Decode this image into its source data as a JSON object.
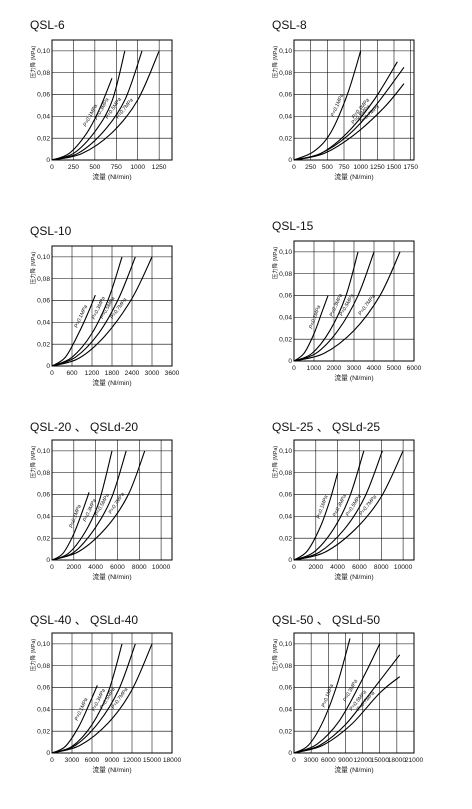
{
  "chart_data": [
    {
      "type": "line",
      "title": "QSL-6",
      "xlabel": "流量 (Nl/min)",
      "ylabel": "压力降 (MPa)",
      "xlim": [
        0,
        1400
      ],
      "ylim": [
        0,
        0.11
      ],
      "xticks": [
        0,
        250,
        500,
        750,
        1000,
        1250
      ],
      "yticks": [
        0,
        0.02,
        0.04,
        0.06,
        0.08,
        0.1
      ],
      "yticklabels": [
        "0",
        "0,02",
        "0,04",
        "0,06",
        "0,08",
        "0,10"
      ],
      "series": [
        {
          "name": "P=0.1MPa",
          "x": [
            0,
            200,
            400,
            550,
            700
          ],
          "y": [
            0,
            0.006,
            0.024,
            0.046,
            0.075
          ]
        },
        {
          "name": "P=0.3MPa",
          "x": [
            0,
            250,
            500,
            700,
            850
          ],
          "y": [
            0,
            0.006,
            0.026,
            0.054,
            0.1
          ]
        },
        {
          "name": "P=0.5MPa",
          "x": [
            0,
            300,
            600,
            850,
            1050
          ],
          "y": [
            0,
            0.006,
            0.026,
            0.055,
            0.1
          ]
        },
        {
          "name": "P=0.7MPa",
          "x": [
            0,
            350,
            700,
            1000,
            1250
          ],
          "y": [
            0,
            0.006,
            0.025,
            0.055,
            0.1
          ]
        }
      ]
    },
    {
      "type": "line",
      "title": "QSL-8",
      "xlabel": "流量 (Nl/min)",
      "ylabel": "压力降 (MPa)",
      "xlim": [
        0,
        1800
      ],
      "ylim": [
        0,
        0.11
      ],
      "xticks": [
        0,
        250,
        500,
        750,
        1000,
        1250,
        1500,
        1750
      ],
      "yticks": [
        0,
        0.02,
        0.04,
        0.06,
        0.08,
        0.1
      ],
      "yticklabels": [
        "0",
        "0,02",
        "0,04",
        "0,06",
        "0,08",
        "0,10"
      ],
      "series": [
        {
          "name": "P=0.1MPa",
          "x": [
            0,
            300,
            550,
            800,
            1000
          ],
          "y": [
            0,
            0.008,
            0.025,
            0.06,
            0.1
          ]
        },
        {
          "name": "P=0.3MPa",
          "x": [
            0,
            400,
            800,
            1200,
            1550
          ],
          "y": [
            0,
            0.006,
            0.025,
            0.055,
            0.09
          ]
        },
        {
          "name": "P=0.5MPa",
          "x": [
            0,
            400,
            800,
            1200,
            1650
          ],
          "y": [
            0,
            0.006,
            0.022,
            0.048,
            0.085
          ]
        },
        {
          "name": "P=0.7MPa",
          "x": [
            0,
            450,
            900,
            1350,
            1650
          ],
          "y": [
            0,
            0.006,
            0.023,
            0.048,
            0.07
          ]
        }
      ]
    },
    {
      "type": "line",
      "title": "QSL-10",
      "xlabel": "流量 (Nl/min)",
      "ylabel": "压力降 (MPa)",
      "xlim": [
        0,
        3600
      ],
      "ylim": [
        0,
        0.11
      ],
      "xticks": [
        0,
        600,
        1200,
        1800,
        2400,
        3000,
        3600
      ],
      "yticks": [
        0,
        0.02,
        0.04,
        0.06,
        0.08,
        0.1
      ],
      "yticklabels": [
        "0",
        "0,02",
        "0,04",
        "0,06",
        "0,08",
        "0,10"
      ],
      "series": [
        {
          "name": "P=0.1MPa",
          "x": [
            0,
            400,
            800,
            1100,
            1300
          ],
          "y": [
            0,
            0.008,
            0.03,
            0.05,
            0.065
          ]
        },
        {
          "name": "P=0.3MPa",
          "x": [
            0,
            600,
            1200,
            1700,
            2100
          ],
          "y": [
            0,
            0.008,
            0.03,
            0.062,
            0.1
          ]
        },
        {
          "name": "P=0.5MPa",
          "x": [
            0,
            700,
            1400,
            2000,
            2500
          ],
          "y": [
            0,
            0.008,
            0.03,
            0.062,
            0.1
          ]
        },
        {
          "name": "P=0.7MPa",
          "x": [
            0,
            800,
            1600,
            2400,
            3000
          ],
          "y": [
            0,
            0.007,
            0.028,
            0.062,
            0.1
          ]
        }
      ]
    },
    {
      "type": "line",
      "title": "QSL-15",
      "xlabel": "流量 (Nl/min)",
      "ylabel": "压力降 (MPa)",
      "xlim": [
        0,
        6000
      ],
      "ylim": [
        0,
        0.11
      ],
      "xticks": [
        0,
        1000,
        2000,
        3000,
        4000,
        5000,
        6000
      ],
      "yticks": [
        0,
        0.02,
        0.04,
        0.06,
        0.08,
        0.1
      ],
      "yticklabels": [
        "0",
        "0,02",
        "0,04",
        "0,06",
        "0,08",
        "0,10"
      ],
      "series": [
        {
          "name": "P=0.1MPa",
          "x": [
            0,
            500,
            1000,
            1400,
            1700
          ],
          "y": [
            0,
            0.007,
            0.025,
            0.045,
            0.06
          ]
        },
        {
          "name": "P=0.3MPa",
          "x": [
            0,
            900,
            1800,
            2600,
            3200
          ],
          "y": [
            0,
            0.007,
            0.028,
            0.06,
            0.1
          ]
        },
        {
          "name": "P=0.5MPa",
          "x": [
            0,
            1100,
            2200,
            3200,
            4000
          ],
          "y": [
            0,
            0.007,
            0.028,
            0.06,
            0.1
          ]
        },
        {
          "name": "P=0.7MPa",
          "x": [
            0,
            1500,
            3000,
            4300,
            5300
          ],
          "y": [
            0,
            0.007,
            0.028,
            0.06,
            0.1
          ]
        }
      ]
    },
    {
      "type": "line",
      "title": "QSL-20 、 QSLd-20",
      "xlabel": "流量 (Nl/min)",
      "ylabel": "压力降 (MPa)",
      "xlim": [
        0,
        11000
      ],
      "ylim": [
        0,
        0.11
      ],
      "xticks": [
        0,
        2000,
        4000,
        6000,
        8000,
        10000
      ],
      "yticks": [
        0,
        0.02,
        0.04,
        0.06,
        0.08,
        0.1
      ],
      "yticklabels": [
        "0",
        "0,02",
        "0,04",
        "0,06",
        "0,08",
        "0,10"
      ],
      "series": [
        {
          "name": "P=0.1MPa",
          "x": [
            0,
            1000,
            2000,
            2800,
            3400
          ],
          "y": [
            0,
            0.006,
            0.024,
            0.045,
            0.062
          ]
        },
        {
          "name": "P=0.3MPa",
          "x": [
            0,
            1500,
            3000,
            4300,
            5500
          ],
          "y": [
            0,
            0.006,
            0.025,
            0.053,
            0.1
          ]
        },
        {
          "name": "P=0.5MPa",
          "x": [
            0,
            2000,
            4000,
            5500,
            6800
          ],
          "y": [
            0,
            0.007,
            0.03,
            0.058,
            0.1
          ]
        },
        {
          "name": "P=0.7MPa",
          "x": [
            0,
            2500,
            5000,
            7000,
            8500
          ],
          "y": [
            0,
            0.008,
            0.03,
            0.06,
            0.1
          ]
        }
      ]
    },
    {
      "type": "line",
      "title": "QSL-25 、 QSLd-25",
      "xlabel": "流量 (Nl/min)",
      "ylabel": "压力降 (MPa)",
      "xlim": [
        0,
        11000
      ],
      "ylim": [
        0,
        0.11
      ],
      "xticks": [
        0,
        2000,
        4000,
        6000,
        8000,
        10000
      ],
      "yticks": [
        0,
        0.02,
        0.04,
        0.06,
        0.08,
        0.1
      ],
      "yticklabels": [
        "0",
        "0,02",
        "0,04",
        "0,06",
        "0,08",
        "0,10"
      ],
      "series": [
        {
          "name": "P=0.1MPa",
          "x": [
            0,
            1200,
            2400,
            3300,
            4000
          ],
          "y": [
            0,
            0.008,
            0.03,
            0.055,
            0.08
          ]
        },
        {
          "name": "P=0.3MPa",
          "x": [
            0,
            1800,
            3600,
            5100,
            6400
          ],
          "y": [
            0,
            0.007,
            0.028,
            0.058,
            0.1
          ]
        },
        {
          "name": "P=0.5MPa",
          "x": [
            0,
            2300,
            4600,
            6500,
            8100
          ],
          "y": [
            0,
            0.007,
            0.028,
            0.058,
            0.1
          ]
        },
        {
          "name": "P=0.7MPa",
          "x": [
            0,
            2800,
            5600,
            8000,
            10000
          ],
          "y": [
            0,
            0.007,
            0.028,
            0.058,
            0.1
          ]
        }
      ]
    },
    {
      "type": "line",
      "title": "QSL-40 、 QSLd-40",
      "xlabel": "流量 (Nl/min)",
      "ylabel": "压力降 (MPa)",
      "xlim": [
        0,
        18000
      ],
      "ylim": [
        0,
        0.11
      ],
      "xticks": [
        0,
        3000,
        6000,
        9000,
        12000,
        15000,
        18000
      ],
      "yticks": [
        0,
        0.02,
        0.04,
        0.06,
        0.08,
        0.1
      ],
      "yticklabels": [
        "0",
        "0,02",
        "0,04",
        "0,06",
        "0,08",
        "0,10"
      ],
      "series": [
        {
          "name": "P=0.1MPa",
          "x": [
            0,
            2000,
            4000,
            5600,
            6800
          ],
          "y": [
            0,
            0.006,
            0.024,
            0.045,
            0.062
          ]
        },
        {
          "name": "P=0.3MPa",
          "x": [
            0,
            3000,
            6000,
            8500,
            10500
          ],
          "y": [
            0,
            0.006,
            0.026,
            0.057,
            0.1
          ]
        },
        {
          "name": "P=0.5MPa",
          "x": [
            0,
            3500,
            7000,
            10000,
            12500
          ],
          "y": [
            0,
            0.007,
            0.028,
            0.058,
            0.1
          ]
        },
        {
          "name": "P=0.7MPa",
          "x": [
            0,
            4200,
            8500,
            12000,
            15000
          ],
          "y": [
            0,
            0.007,
            0.028,
            0.058,
            0.1
          ]
        }
      ]
    },
    {
      "type": "line",
      "title": "QSL-50 、 QSLd-50",
      "xlabel": "流量 (Nl/min)",
      "ylabel": "压力降 (MPa)",
      "xlim": [
        0,
        21000
      ],
      "ylim": [
        0,
        0.11
      ],
      "xticks": [
        0,
        3000,
        6000,
        9000,
        12000,
        15000,
        18000,
        21000
      ],
      "yticks": [
        0,
        0.02,
        0.04,
        0.06,
        0.08,
        0.1
      ],
      "yticklabels": [
        "0",
        "0,02",
        "0,04",
        "0,06",
        "0,08",
        "0,10"
      ],
      "series": [
        {
          "name": "P=0.1MPa",
          "x": [
            0,
            2500,
            5000,
            7500,
            9800
          ],
          "y": [
            0,
            0.007,
            0.028,
            0.062,
            0.105
          ]
        },
        {
          "name": "P=0.3MPa",
          "x": [
            0,
            4000,
            8000,
            12000,
            15000
          ],
          "y": [
            0,
            0.008,
            0.03,
            0.068,
            0.1
          ]
        },
        {
          "name": "P=0.5MPa",
          "x": [
            0,
            4500,
            9000,
            13500,
            18500
          ],
          "y": [
            0,
            0.007,
            0.026,
            0.056,
            0.09
          ]
        },
        {
          "name": "P=0.7MPa",
          "x": [
            0,
            5000,
            10000,
            15000,
            18500
          ],
          "y": [
            0,
            0.007,
            0.026,
            0.055,
            0.07
          ]
        }
      ]
    }
  ]
}
